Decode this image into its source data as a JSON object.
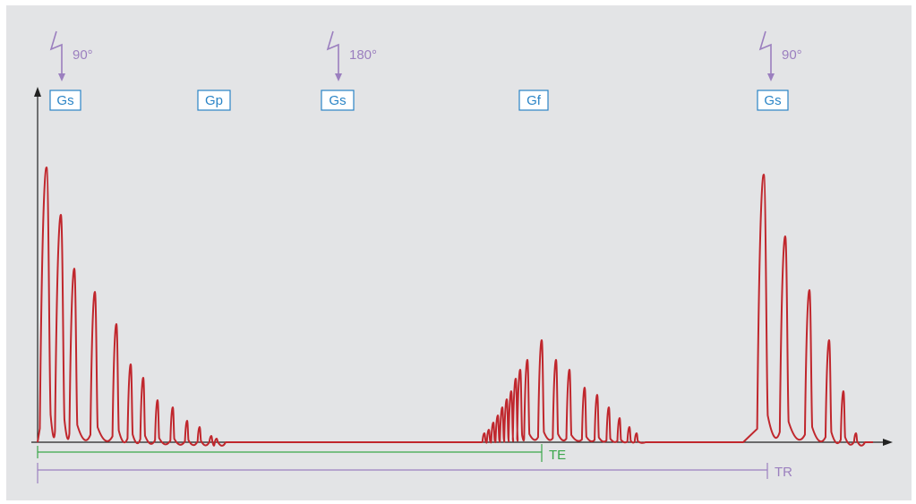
{
  "colors": {
    "panel_bg": "#e3e4e6",
    "signal": "#c0272d",
    "pulse": "#9b7fbf",
    "box_stroke": "#2a84c6",
    "box_fill": "#ffffff",
    "te": "#3aa64a",
    "tr": "#9b7fbf",
    "axis": "#222222"
  },
  "pulses": [
    {
      "label": "90°",
      "icon": "rf-pulse-icon"
    },
    {
      "label": "180°",
      "icon": "rf-pulse-icon"
    },
    {
      "label": "90°",
      "icon": "rf-pulse-icon"
    }
  ],
  "gradients": [
    "Gs",
    "Gp",
    "Gs",
    "Gf",
    "Gs"
  ],
  "intervals": {
    "te": "TE",
    "tr": "TR"
  }
}
